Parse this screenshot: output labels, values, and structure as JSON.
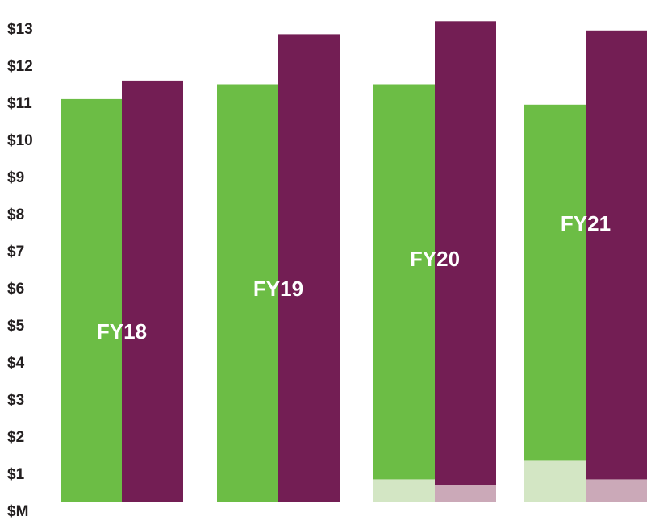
{
  "chart_data": {
    "type": "bar",
    "categories": [
      "FY18",
      "FY19",
      "FY20",
      "FY21"
    ],
    "y_tick_labels": [
      "$M",
      "$1",
      "$2",
      "$3",
      "$4",
      "$5",
      "$6",
      "$7",
      "$8",
      "$9",
      "$10",
      "$11",
      "$12",
      "$13"
    ],
    "ylim": [
      0,
      13
    ],
    "grid": false,
    "legend": "none",
    "series": [
      {
        "values": [
          10.85,
          11.25,
          11.25,
          10.7
        ],
        "color": "#6cbd45",
        "base_segment_values": [
          0,
          0,
          0.6,
          1.1
        ],
        "base_segment_color": "#d3e6c4"
      },
      {
        "values": [
          11.35,
          12.6,
          12.95,
          12.7
        ],
        "color": "#731e54",
        "base_segment_values": [
          0,
          0,
          0.45,
          0.6
        ],
        "base_segment_color": "#cba9b8"
      }
    ]
  }
}
